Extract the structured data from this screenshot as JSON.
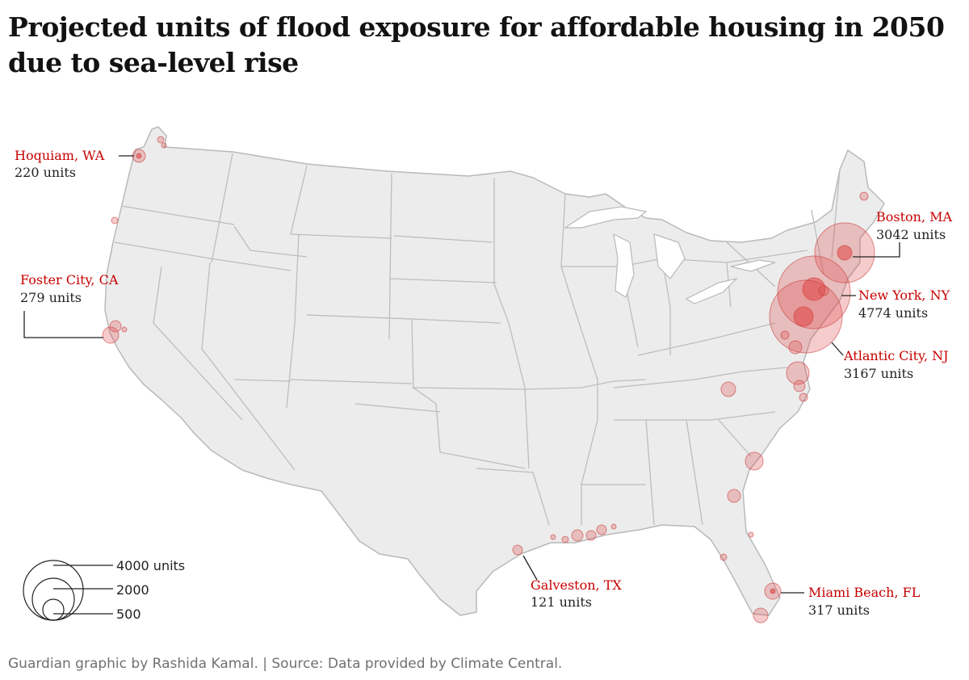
{
  "title": {
    "line1": "Projected units of flood exposure for affordable housing in 2050",
    "line2": "due to sea-level rise"
  },
  "labeled_cities": [
    {
      "name": "Hoquiam, WA",
      "units": "220 units",
      "value": 220
    },
    {
      "name": "Foster City, CA",
      "units": "279 units",
      "value": 279
    },
    {
      "name": "Boston, MA",
      "units": "3042 units",
      "value": 3042
    },
    {
      "name": "New York, NY",
      "units": "4774 units",
      "value": 4774
    },
    {
      "name": "Atlantic City, NJ",
      "units": "3167 units",
      "value": 3167
    },
    {
      "name": "Galveston, TX",
      "units": "121 units",
      "value": 121
    },
    {
      "name": "Miami Beach, FL",
      "units": "317 units",
      "value": 317
    }
  ],
  "legend": {
    "items": [
      {
        "label": "4000 units",
        "value": 4000
      },
      {
        "label": "2000",
        "value": 2000
      },
      {
        "label": "500",
        "value": 500
      }
    ]
  },
  "footer": "Guardian graphic by Rashida Kamal. | Source: Data provided by Climate Central.",
  "colors": {
    "accent": "#c70000",
    "bubble_fill": "#e04545",
    "land": "#ececec",
    "border": "#bdbdbd"
  }
}
